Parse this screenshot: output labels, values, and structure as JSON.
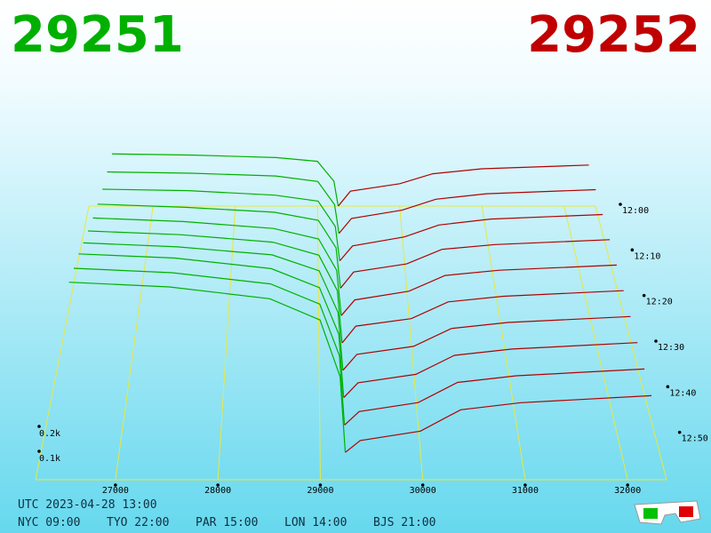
{
  "chart_data": {
    "type": "depth3d",
    "bid_price": "29251",
    "ask_price": "29252",
    "bid_color": "#00b000",
    "ask_color": "#b00000",
    "grid_color": "#e8e840",
    "xlim": [
      26220,
      32380
    ],
    "xticks": [
      27000,
      28000,
      29000,
      30000,
      31000,
      32000
    ],
    "tlim": [
      720,
      780
    ],
    "tticks": [
      {
        "value": 720,
        "label": "12:00"
      },
      {
        "value": 730,
        "label": "12:10"
      },
      {
        "value": 740,
        "label": "12:20"
      },
      {
        "value": 750,
        "label": "12:30"
      },
      {
        "value": 760,
        "label": "12:40"
      },
      {
        "value": 770,
        "label": "12:50"
      }
    ],
    "zticks": [
      {
        "value": 100,
        "label": "0.1k"
      },
      {
        "value": 200,
        "label": "0.2k"
      }
    ],
    "bid_prices": [
      26500,
      27500,
      28500,
      29000,
      29200,
      29251
    ],
    "ask_prices": [
      29252,
      29400,
      30000,
      30400,
      31000,
      32300
    ],
    "snapshots": [
      {
        "time": 720,
        "bid_depth": [
          420,
          410,
          390,
          360,
          200,
          0
        ],
        "ask_depth": [
          0,
          120,
          180,
          260,
          300,
          330
        ]
      },
      {
        "time": 726,
        "bid_depth": [
          450,
          440,
          420,
          380,
          210,
          0
        ],
        "ask_depth": [
          0,
          110,
          170,
          250,
          290,
          320
        ]
      },
      {
        "time": 732,
        "bid_depth": [
          480,
          470,
          440,
          400,
          230,
          0
        ],
        "ask_depth": [
          0,
          100,
          160,
          240,
          280,
          310
        ]
      },
      {
        "time": 738,
        "bid_depth": [
          520,
          500,
          470,
          420,
          250,
          0
        ],
        "ask_depth": [
          0,
          100,
          150,
          240,
          270,
          300
        ]
      },
      {
        "time": 744,
        "bid_depth": [
          560,
          540,
          500,
          440,
          260,
          0
        ],
        "ask_depth": [
          0,
          90,
          140,
          230,
          260,
          290
        ]
      },
      {
        "time": 750,
        "bid_depth": [
          600,
          580,
          540,
          470,
          280,
          0
        ],
        "ask_depth": [
          0,
          90,
          130,
          220,
          250,
          280
        ]
      },
      {
        "time": 756,
        "bid_depth": [
          640,
          620,
          580,
          500,
          290,
          0
        ],
        "ask_depth": [
          0,
          80,
          120,
          210,
          240,
          270
        ]
      },
      {
        "time": 762,
        "bid_depth": [
          680,
          660,
          610,
          520,
          300,
          0
        ],
        "ask_depth": [
          0,
          70,
          110,
          200,
          230,
          260
        ]
      },
      {
        "time": 768,
        "bid_depth": [
          700,
          680,
          630,
          540,
          310,
          0
        ],
        "ask_depth": [
          0,
          60,
          100,
          190,
          220,
          250
        ]
      },
      {
        "time": 774,
        "bid_depth": [
          720,
          700,
          650,
          560,
          320,
          0
        ],
        "ask_depth": [
          0,
          50,
          90,
          180,
          210,
          240
        ]
      }
    ],
    "clock_utc": "UTC 2023-04-28 13:00",
    "clocks": [
      "NYC 09:00",
      "TYO 22:00",
      "PAR 15:00",
      "LON 14:00",
      "BJS 21:00"
    ]
  }
}
